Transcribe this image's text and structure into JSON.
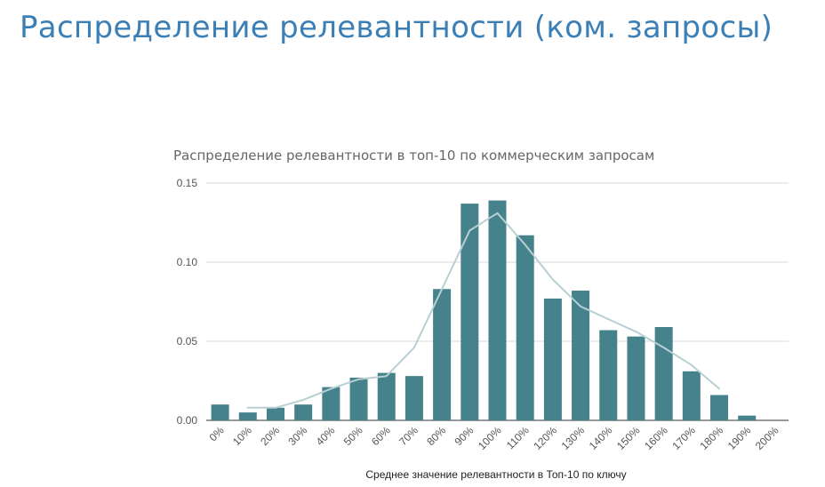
{
  "slide": {
    "title": "Распределение релевантности (ком. запросы)"
  },
  "colors": {
    "title": "#3b7fb7",
    "bar": "#45828c",
    "trendline": "#b7d0d3",
    "grid": "#d9d9d9"
  },
  "chart_data": {
    "type": "bar",
    "title": "Распределение релевантности в топ-10 по коммерческим запросам",
    "xlabel": "Среднее значение релевантности в Топ-10 по ключу",
    "ylabel": "",
    "categories": [
      "0%",
      "10%",
      "20%",
      "30%",
      "40%",
      "50%",
      "60%",
      "70%",
      "80%",
      "90%",
      "100%",
      "110%",
      "120%",
      "130%",
      "140%",
      "150%",
      "160%",
      "170%",
      "180%",
      "190%",
      "200%"
    ],
    "values": [
      0.01,
      0.005,
      0.008,
      0.01,
      0.021,
      0.027,
      0.03,
      0.028,
      0.083,
      0.137,
      0.139,
      0.117,
      0.077,
      0.082,
      0.057,
      0.053,
      0.059,
      0.031,
      0.016,
      0.003,
      0.0
    ],
    "trendline": {
      "type": "moving-average",
      "from_category": "10%",
      "to_category": "180%",
      "values": [
        0.008,
        0.008,
        0.013,
        0.02,
        0.026,
        0.028,
        0.046,
        0.083,
        0.12,
        0.131,
        0.111,
        0.089,
        0.072,
        0.064,
        0.056,
        0.046,
        0.035,
        0.02
      ]
    },
    "ylim": [
      0,
      0.15
    ],
    "yticks": [
      0.0,
      0.05,
      0.1,
      0.15
    ],
    "ytick_labels": [
      "0.00",
      "0.05",
      "0.10",
      "0.15"
    ],
    "grid": true,
    "legend": "none"
  }
}
